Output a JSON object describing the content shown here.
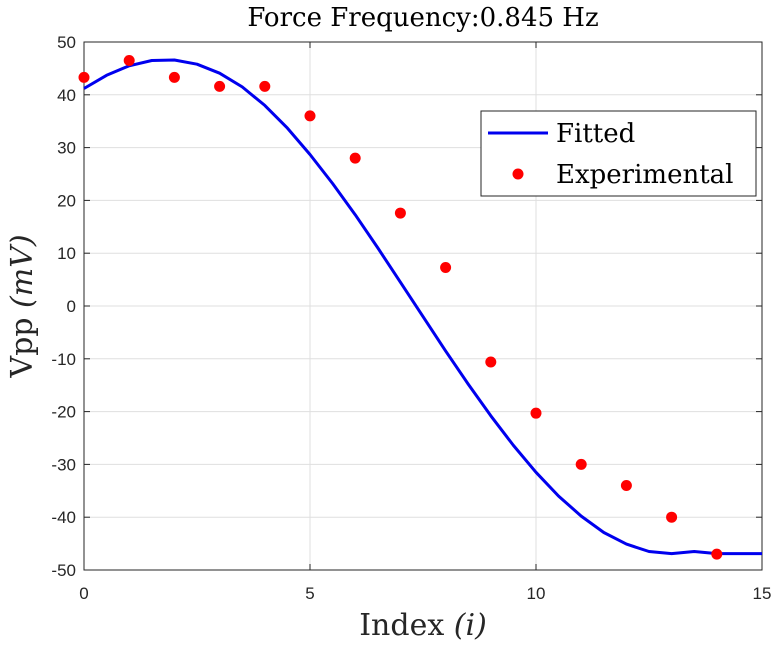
{
  "chart_data": {
    "type": "scatter",
    "title": "Force Frequency:0.845 Hz",
    "xlabel_main": "Index",
    "xlabel_var": "(i)",
    "ylabel_main": "Vpp",
    "ylabel_var": "(mV)",
    "xlim": [
      0,
      15
    ],
    "ylim": [
      -50,
      50
    ],
    "xticks": [
      0,
      5,
      10,
      15
    ],
    "yticks": [
      -50,
      -40,
      -30,
      -20,
      -10,
      0,
      10,
      20,
      30,
      40,
      50
    ],
    "grid": true,
    "legend_position": "top-right",
    "series": [
      {
        "name": "Fitted",
        "kind": "line",
        "color": "#0000ee",
        "x": [
          0,
          0.5,
          1,
          1.5,
          2,
          2.5,
          3,
          3.5,
          4,
          4.5,
          5,
          5.5,
          6,
          6.5,
          7,
          7.5,
          8,
          8.5,
          9,
          9.5,
          10,
          10.5,
          11,
          11.5,
          12,
          12.5,
          13,
          13.5,
          14,
          14.5,
          15
        ],
        "y": [
          41.2,
          43.7,
          45.5,
          46.5,
          46.6,
          45.8,
          44.1,
          41.5,
          38.0,
          33.7,
          28.7,
          23.2,
          17.3,
          11.0,
          4.5,
          -2.0,
          -8.5,
          -14.8,
          -20.8,
          -26.4,
          -31.5,
          -36.0,
          -39.8,
          -42.9,
          -45.1,
          -46.5,
          -46.9,
          -46.5,
          -46.9,
          -46.9,
          -46.9
        ]
      },
      {
        "name": "Experimental",
        "kind": "scatter",
        "color": "#ff0000",
        "x": [
          0,
          1,
          2,
          3,
          4,
          5,
          6,
          7,
          8,
          9,
          10,
          11,
          12,
          13,
          14
        ],
        "y": [
          43.3,
          46.5,
          43.3,
          41.6,
          41.6,
          36.0,
          28.0,
          17.6,
          7.3,
          -10.6,
          -20.3,
          -30.0,
          -34.0,
          -40.0,
          -47.0
        ]
      }
    ]
  }
}
